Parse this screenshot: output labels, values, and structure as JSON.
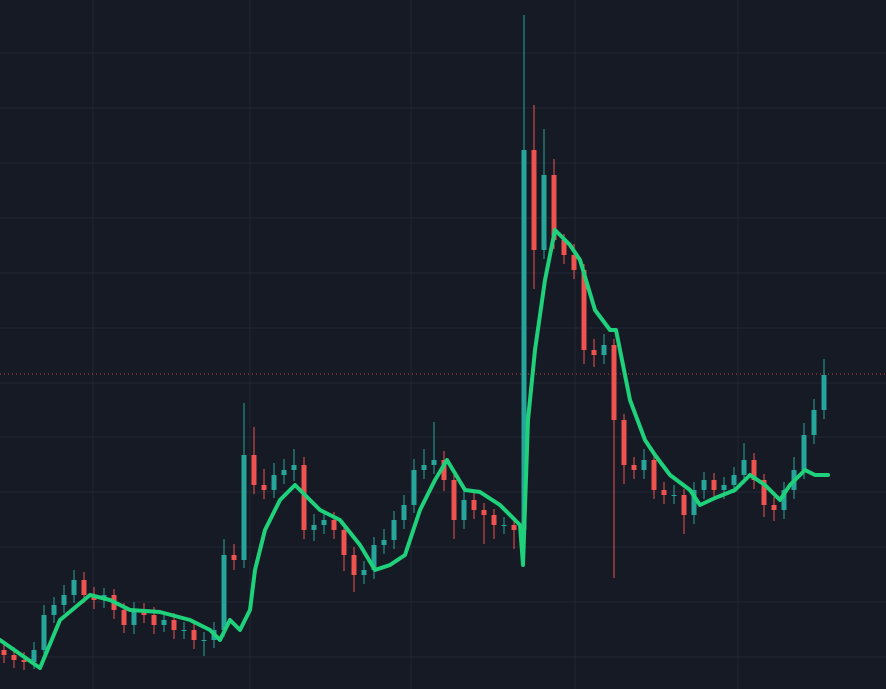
{
  "chart_data": {
    "type": "candlestick",
    "x": [
      4,
      14,
      24,
      34,
      44,
      54,
      64,
      74,
      84,
      94,
      104,
      114,
      124,
      134,
      144,
      154,
      164,
      174,
      184,
      194,
      204,
      214,
      224,
      234,
      244,
      254,
      264,
      274,
      284,
      294,
      304,
      314,
      324,
      334,
      344,
      354,
      364,
      374,
      384,
      394,
      404,
      414,
      424,
      434,
      444,
      454,
      464,
      474,
      484,
      494,
      504,
      514,
      524,
      534,
      544,
      554,
      564,
      574,
      584,
      594,
      604,
      614,
      624,
      634,
      644,
      654,
      664,
      674,
      684,
      694,
      704,
      714,
      724,
      734,
      744,
      754,
      764,
      774,
      784,
      794,
      804,
      814,
      824
    ],
    "open": [
      39,
      34,
      29,
      27,
      39,
      74,
      84,
      94,
      109,
      94,
      89,
      94,
      79,
      64,
      79,
      74,
      64,
      69,
      59,
      59,
      49,
      49,
      59,
      134,
      129,
      234,
      204,
      199,
      214,
      219,
      224,
      159,
      164,
      169,
      159,
      134,
      114,
      119,
      144,
      149,
      169,
      184,
      219,
      224,
      229,
      209,
      169,
      189,
      179,
      174,
      164,
      164,
      159,
      539,
      439,
      514,
      449,
      434,
      419,
      339,
      334,
      344,
      269,
      224,
      219,
      229,
      199,
      194,
      194,
      174,
      199,
      209,
      199,
      204,
      214,
      229,
      209,
      184,
      179,
      199,
      219,
      254,
      279
    ],
    "high": [
      47,
      42,
      37,
      47,
      84,
      92,
      104,
      119,
      117,
      102,
      101,
      100,
      86,
      87,
      86,
      82,
      77,
      76,
      67,
      66,
      57,
      67,
      150,
      145,
      286,
      262,
      220,
      226,
      230,
      240,
      232,
      175,
      178,
      177,
      165,
      142,
      128,
      152,
      160,
      178,
      194,
      230,
      240,
      267,
      238,
      215,
      198,
      197,
      186,
      180,
      172,
      172,
      674,
      584,
      560,
      530,
      455,
      445,
      425,
      350,
      355,
      350,
      275,
      232,
      240,
      235,
      207,
      204,
      200,
      207,
      217,
      216,
      212,
      222,
      246,
      236,
      215,
      192,
      207,
      232,
      266,
      290,
      330
    ],
    "low": [
      26,
      21,
      19,
      20,
      32,
      66,
      76,
      86,
      86,
      80,
      81,
      70,
      56,
      55,
      66,
      55,
      57,
      50,
      50,
      40,
      33,
      41,
      52,
      119,
      121,
      195,
      190,
      191,
      205,
      208,
      150,
      148,
      155,
      150,
      118,
      97,
      105,
      110,
      135,
      140,
      160,
      176,
      210,
      215,
      198,
      150,
      160,
      170,
      145,
      150,
      155,
      140,
      124,
      400,
      430,
      440,
      425,
      410,
      325,
      322,
      325,
      111,
      205,
      210,
      210,
      190,
      185,
      185,
      155,
      165,
      190,
      190,
      190,
      196,
      205,
      200,
      172,
      168,
      170,
      190,
      210,
      245,
      270
    ],
    "close": [
      34,
      29,
      27,
      39,
      74,
      84,
      94,
      109,
      94,
      89,
      94,
      79,
      64,
      79,
      74,
      64,
      69,
      59,
      59,
      49,
      49,
      59,
      134,
      129,
      234,
      204,
      199,
      214,
      219,
      224,
      159,
      164,
      169,
      159,
      134,
      114,
      119,
      144,
      149,
      169,
      184,
      219,
      224,
      229,
      209,
      169,
      189,
      179,
      174,
      164,
      164,
      159,
      539,
      439,
      514,
      449,
      434,
      419,
      339,
      334,
      344,
      269,
      224,
      219,
      229,
      199,
      194,
      194,
      174,
      199,
      209,
      199,
      204,
      214,
      229,
      209,
      184,
      179,
      199,
      219,
      254,
      279,
      314
    ],
    "up_color": "#26a69a",
    "down_color": "#ef5350",
    "moving_average": {
      "type": "line",
      "color": "#1fd17a",
      "x": [
        0,
        40,
        60,
        90,
        110,
        130,
        160,
        190,
        210,
        220,
        230,
        240,
        250,
        255,
        265,
        280,
        295,
        300,
        320,
        340,
        360,
        375,
        390,
        405,
        420,
        435,
        447,
        465,
        480,
        500,
        515,
        520,
        523,
        528,
        535,
        545,
        555,
        570,
        580,
        595,
        610,
        616,
        630,
        645,
        655,
        670,
        690,
        700,
        715,
        735,
        750,
        765,
        780,
        790,
        805,
        815,
        828
      ],
      "values": [
        49,
        21,
        69,
        94,
        89,
        79,
        77,
        69,
        59,
        49,
        69,
        59,
        79,
        119,
        159,
        189,
        204,
        199,
        179,
        169,
        144,
        119,
        124,
        134,
        179,
        209,
        229,
        199,
        197,
        184,
        169,
        164,
        124,
        269,
        339,
        409,
        459,
        444,
        429,
        379,
        359,
        359,
        289,
        249,
        234,
        214,
        199,
        184,
        191,
        199,
        214,
        204,
        189,
        204,
        219,
        214,
        214
      ]
    },
    "price_line": {
      "value": 315,
      "color": "#ef5350"
    },
    "xlim": [
      0,
      886
    ],
    "ylim": [
      0,
      689
    ],
    "xticks": [
      93,
      250,
      411,
      575,
      738
    ],
    "yticks": [
      32,
      87,
      142,
      197,
      252,
      306,
      361,
      416,
      471,
      526,
      581,
      636
    ],
    "grid": true
  }
}
